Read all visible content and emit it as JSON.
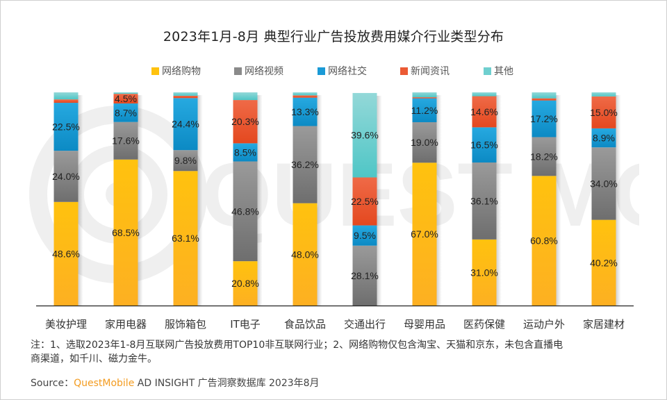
{
  "chart_data": {
    "type": "bar",
    "stacked": true,
    "title": "2023年1月-8月 典型行业广告投放费用媒介行业类型分布",
    "xlabel": "",
    "ylabel": "",
    "ylim": [
      0,
      100
    ],
    "unit": "%",
    "grid": false,
    "legend_position": "top-center",
    "categories": [
      "美妆护理",
      "家用电器",
      "服饰箱包",
      "IT电子",
      "食品饮品",
      "交通出行",
      "母婴用品",
      "医药保健",
      "运动户外",
      "家居建材"
    ],
    "series": [
      {
        "name": "网络购物",
        "color": "#FFC20E",
        "color_dark": "#FDB022",
        "values": [
          48.6,
          68.5,
          63.1,
          20.8,
          48.0,
          0,
          67.0,
          31.0,
          60.8,
          40.2
        ],
        "labels": [
          "48.6%",
          "68.5%",
          "63.1%",
          "20.8%",
          "48.0%",
          "",
          "67.0%",
          "31.0%",
          "60.8%",
          "40.2%"
        ]
      },
      {
        "name": "网络视频",
        "color": "#9A9A9A",
        "color_dark": "#6E6E6E",
        "values": [
          24.0,
          17.6,
          9.8,
          46.8,
          36.2,
          28.1,
          19.0,
          36.1,
          18.2,
          34.0
        ],
        "labels": [
          "24.0%",
          "17.6%",
          "9.8%",
          "46.8%",
          "36.2%",
          "28.1%",
          "19.0%",
          "36.1%",
          "18.2%",
          "34.0%"
        ]
      },
      {
        "name": "网络社交",
        "color": "#26A9E0",
        "color_dark": "#0C8AC4",
        "values": [
          22.5,
          8.7,
          24.4,
          8.5,
          13.3,
          9.5,
          11.2,
          16.5,
          17.2,
          8.9
        ],
        "labels": [
          "22.5%",
          "8.7%",
          "24.4%",
          "8.5%",
          "13.3%",
          "9.5%",
          "11.2%",
          "16.5%",
          "17.2%",
          "8.9%"
        ]
      },
      {
        "name": "新闻资讯",
        "color": "#EF6A47",
        "color_dark": "#E4481F",
        "values": [
          1.6,
          4.5,
          1.1,
          20.3,
          1.1,
          22.5,
          0.5,
          14.6,
          1.0,
          15.0
        ],
        "labels": [
          "",
          "4.5%",
          "",
          "20.3%",
          "",
          "22.5%",
          "",
          "14.6%",
          "",
          "15.0%"
        ]
      },
      {
        "name": "其他",
        "color": "#93D8D8",
        "color_dark": "#4FC6C6",
        "values": [
          3.3,
          0.7,
          1.6,
          3.6,
          1.4,
          39.6,
          2.3,
          1.8,
          2.8,
          1.9
        ],
        "labels": [
          "",
          "",
          "",
          "",
          "",
          "39.6%",
          "",
          "",
          "",
          ""
        ]
      }
    ]
  },
  "note": {
    "line1": "注：1、选取2023年1-8月互联网广告投放费用TOP10非互联网行业；2、网络购物仅包含淘宝、天猫和京东，未包含直播电",
    "line2": "商渠道，如千川、磁力金牛。"
  },
  "source": {
    "label": "Source：",
    "brand": "QuestMobile",
    "text": " AD INSIGHT 广告洞察数据库 2023年8月"
  }
}
